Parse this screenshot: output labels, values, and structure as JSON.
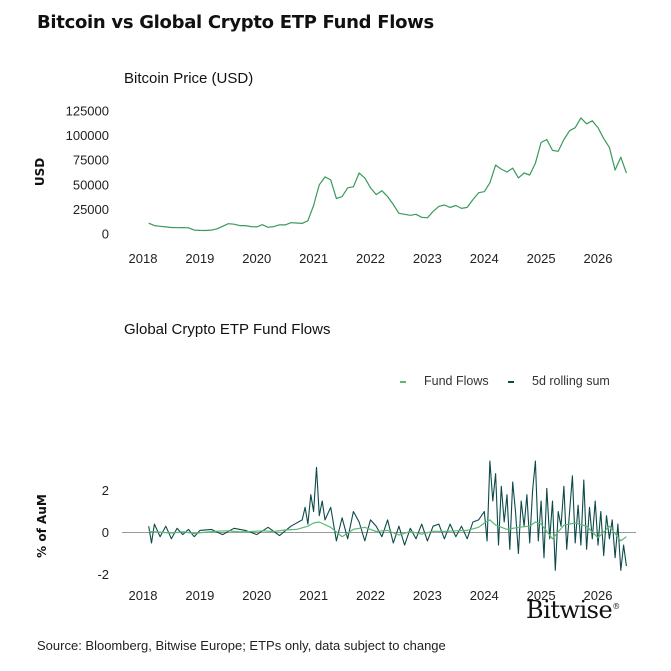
{
  "title": "Bitcoin vs Global Crypto ETP Fund Flows",
  "source": "Source: Bloomberg, Bitwise Europe; ETPs only, data subject to change",
  "brand": "Bitwise",
  "brand_mark": "®",
  "colors": {
    "price": "#3a9a5b",
    "flows": "#5cb877",
    "rolling": "#0e4a4a",
    "axis": "#999999"
  },
  "chart_data": [
    {
      "type": "line",
      "title": "Bitcoin Price (USD)",
      "ylabel": "USD",
      "xlabel": "",
      "ylim": [
        0,
        125000
      ],
      "yticks": [
        0,
        25000,
        50000,
        75000,
        100000,
        125000
      ],
      "xticks": [
        "2018",
        "2019",
        "2020",
        "2021",
        "2022",
        "2023",
        "2024",
        "2025",
        "2026"
      ],
      "xlim": [
        2018,
        2026.6
      ],
      "grid": false,
      "series": [
        {
          "x": [
            2018.1,
            2018.2,
            2018.3,
            2018.4,
            2018.5,
            2018.6,
            2018.7,
            2018.8,
            2018.9,
            2019.0,
            2019.1,
            2019.2,
            2019.3,
            2019.4,
            2019.5,
            2019.6,
            2019.7,
            2019.8,
            2019.9,
            2020.0,
            2020.1,
            2020.2,
            2020.3,
            2020.4,
            2020.5,
            2020.6,
            2020.7,
            2020.8,
            2020.9,
            2021.0,
            2021.05,
            2021.1,
            2021.2,
            2021.3,
            2021.4,
            2021.5,
            2021.6,
            2021.7,
            2021.8,
            2021.9,
            2022.0,
            2022.1,
            2022.2,
            2022.3,
            2022.4,
            2022.5,
            2022.6,
            2022.7,
            2022.8,
            2022.9,
            2023.0,
            2023.1,
            2023.2,
            2023.3,
            2023.4,
            2023.5,
            2023.6,
            2023.7,
            2023.8,
            2023.9,
            2024.0,
            2024.1,
            2024.2,
            2024.3,
            2024.4,
            2024.5,
            2024.6,
            2024.7,
            2024.8,
            2024.9,
            2025.0,
            2025.1,
            2025.2,
            2025.3,
            2025.4,
            2025.5,
            2025.6,
            2025.7,
            2025.8,
            2025.9,
            2026.0,
            2026.1,
            2026.2,
            2026.3,
            2026.4,
            2026.5
          ],
          "y": [
            11000,
            8500,
            7800,
            7200,
            6600,
            6400,
            6500,
            6300,
            4000,
            3700,
            3600,
            4000,
            5200,
            7800,
            10500,
            10000,
            8500,
            8500,
            7500,
            7200,
            9500,
            6800,
            7500,
            9300,
            9200,
            11500,
            11200,
            10800,
            13500,
            29000,
            40000,
            50000,
            58000,
            55000,
            36000,
            38000,
            47000,
            48000,
            62000,
            57000,
            47000,
            40000,
            44000,
            38000,
            30000,
            21000,
            20000,
            19000,
            20000,
            17000,
            16500,
            23000,
            28000,
            29500,
            27000,
            29000,
            26000,
            27000,
            35000,
            42000,
            43000,
            52000,
            70000,
            66000,
            63000,
            67000,
            57000,
            62000,
            60000,
            72000,
            93000,
            96000,
            85000,
            84000,
            96000,
            105000,
            108000,
            118000,
            112000,
            115000,
            108000,
            97000,
            88000,
            65000,
            78000,
            62000
          ]
        }
      ]
    },
    {
      "type": "line",
      "title": "Global Crypto ETP Fund Flows",
      "ylabel": "% of AuM",
      "xlabel": "",
      "ylim": [
        -2.5,
        3.5
      ],
      "yticks": [
        -2,
        0,
        2
      ],
      "xticks": [
        "2018",
        "2019",
        "2020",
        "2021",
        "2022",
        "2023",
        "2024",
        "2025",
        "2026"
      ],
      "xlim": [
        2018,
        2026.6
      ],
      "grid": false,
      "legend": "top-right",
      "series": [
        {
          "name": "Fund Flows",
          "x": [
            2018.1,
            2018.3,
            2018.5,
            2018.7,
            2018.9,
            2019.1,
            2019.3,
            2019.5,
            2019.7,
            2019.9,
            2020.1,
            2020.3,
            2020.5,
            2020.7,
            2020.9,
            2021.0,
            2021.1,
            2021.3,
            2021.5,
            2021.7,
            2021.9,
            2022.1,
            2022.3,
            2022.5,
            2022.7,
            2022.9,
            2023.1,
            2023.3,
            2023.5,
            2023.7,
            2023.9,
            2024.0,
            2024.1,
            2024.2,
            2024.4,
            2024.6,
            2024.8,
            2024.9,
            2025.0,
            2025.2,
            2025.4,
            2025.6,
            2025.8,
            2026.0,
            2026.2,
            2026.4,
            2026.5
          ],
          "y": [
            0.05,
            0.02,
            -0.03,
            0.04,
            -0.05,
            0.02,
            0.06,
            0.08,
            0.03,
            0.05,
            0.08,
            0.05,
            0.12,
            0.15,
            0.3,
            0.45,
            0.5,
            0.25,
            -0.2,
            0.15,
            0.25,
            0.05,
            0.1,
            -0.12,
            0.05,
            -0.08,
            0.06,
            0.05,
            0.08,
            0.1,
            0.25,
            0.45,
            0.6,
            0.35,
            0.15,
            0.25,
            0.3,
            0.5,
            0.4,
            -0.3,
            0.35,
            0.45,
            0.3,
            -0.25,
            0.3,
            -0.4,
            -0.2
          ]
        },
        {
          "name": "5d rolling sum",
          "x": [
            2018.1,
            2018.15,
            2018.2,
            2018.3,
            2018.4,
            2018.5,
            2018.6,
            2018.7,
            2018.8,
            2018.9,
            2019.0,
            2019.2,
            2019.4,
            2019.6,
            2019.8,
            2020.0,
            2020.2,
            2020.4,
            2020.6,
            2020.8,
            2020.85,
            2020.9,
            2020.95,
            2021.0,
            2021.05,
            2021.1,
            2021.15,
            2021.2,
            2021.3,
            2021.4,
            2021.5,
            2021.6,
            2021.7,
            2021.8,
            2021.9,
            2022.0,
            2022.1,
            2022.2,
            2022.3,
            2022.4,
            2022.5,
            2022.6,
            2022.7,
            2022.8,
            2022.9,
            2023.0,
            2023.1,
            2023.2,
            2023.3,
            2023.4,
            2023.5,
            2023.6,
            2023.7,
            2023.8,
            2023.9,
            2024.0,
            2024.05,
            2024.1,
            2024.15,
            2024.2,
            2024.25,
            2024.3,
            2024.35,
            2024.4,
            2024.45,
            2024.5,
            2024.55,
            2024.6,
            2024.65,
            2024.7,
            2024.75,
            2024.8,
            2024.85,
            2024.9,
            2024.95,
            2025.0,
            2025.05,
            2025.1,
            2025.15,
            2025.2,
            2025.25,
            2025.3,
            2025.35,
            2025.4,
            2025.45,
            2025.5,
            2025.55,
            2025.6,
            2025.65,
            2025.7,
            2025.75,
            2025.8,
            2025.85,
            2025.9,
            2025.95,
            2026.0,
            2026.05,
            2026.1,
            2026.15,
            2026.2,
            2026.25,
            2026.3,
            2026.35,
            2026.4,
            2026.45,
            2026.5
          ],
          "y": [
            0.3,
            -0.5,
            0.4,
            -0.2,
            0.3,
            -0.3,
            0.2,
            -0.1,
            0.15,
            -0.2,
            0.1,
            0.15,
            -0.1,
            0.2,
            0.1,
            -0.1,
            0.25,
            -0.15,
            0.3,
            0.6,
            1.2,
            0.4,
            1.8,
            1.0,
            3.1,
            0.8,
            1.5,
            0.6,
            1.2,
            -0.4,
            0.7,
            -0.3,
            1.0,
            0.5,
            -0.4,
            0.6,
            0.3,
            -0.2,
            0.6,
            -0.5,
            0.3,
            -0.6,
            0.2,
            -0.3,
            0.4,
            -0.4,
            0.3,
            0.4,
            -0.3,
            0.4,
            -0.2,
            0.3,
            -0.3,
            0.5,
            0.6,
            1.0,
            -0.4,
            3.4,
            1.5,
            2.8,
            -0.6,
            2.2,
            0.5,
            1.8,
            -0.8,
            2.4,
            1.0,
            -1.0,
            1.5,
            0.3,
            1.8,
            -0.5,
            2.0,
            3.4,
            -0.4,
            1.5,
            -1.2,
            2.1,
            -0.3,
            1.5,
            -1.8,
            1.0,
            0.3,
            2.2,
            -0.8,
            1.0,
            2.7,
            -0.5,
            1.3,
            -0.6,
            2.5,
            -0.8,
            1.2,
            -0.3,
            1.5,
            -0.6,
            1.0,
            -1.1,
            0.8,
            -0.3,
            0.6,
            -1.2,
            0.4,
            -1.8,
            -0.6,
            -1.6
          ]
        }
      ]
    }
  ]
}
